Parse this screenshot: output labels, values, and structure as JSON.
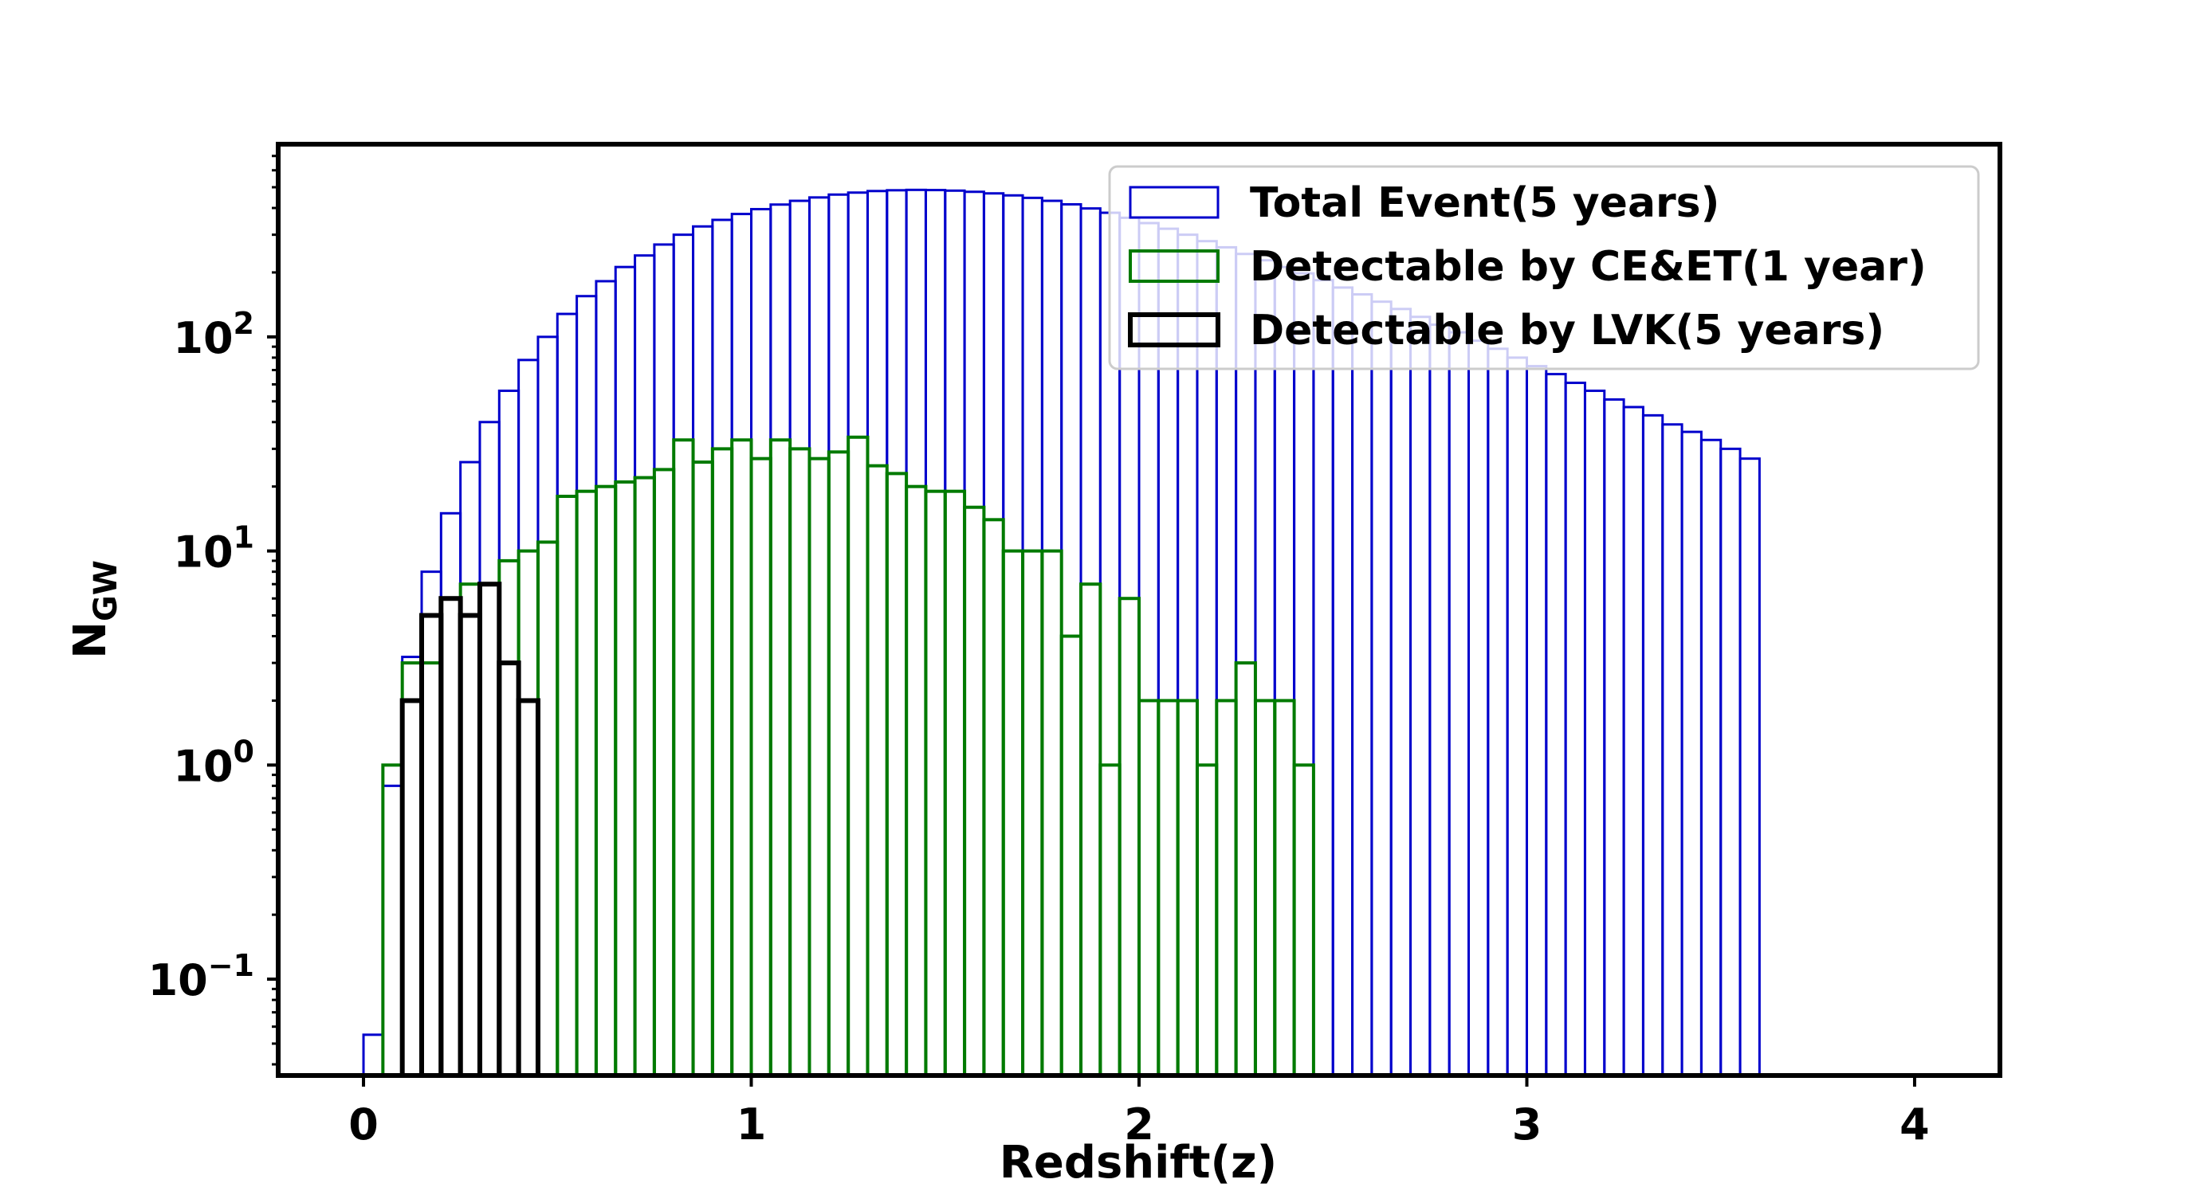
{
  "chart_data": {
    "type": "bar",
    "title": "",
    "xlabel": "Redshift(z)",
    "ylabel_main": "N",
    "ylabel_sub": "GW",
    "yscale": "log",
    "xlim": [
      -0.22,
      4.22
    ],
    "ylim_log10": [
      -1.45,
      2.9
    ],
    "bin_width": 0.05,
    "x_ticks": [
      {
        "value": 0,
        "label": "0"
      },
      {
        "value": 1,
        "label": "1"
      },
      {
        "value": 2,
        "label": "2"
      },
      {
        "value": 3,
        "label": "3"
      },
      {
        "value": 4,
        "label": "4"
      }
    ],
    "y_ticks": [
      {
        "exp": -1,
        "base": "10",
        "sup": "−1"
      },
      {
        "exp": 0,
        "base": "10",
        "sup": "0"
      },
      {
        "exp": 1,
        "base": "10",
        "sup": "1"
      },
      {
        "exp": 2,
        "base": "10",
        "sup": "2"
      }
    ],
    "legend_position": "upper-right",
    "series": [
      {
        "name": "Total Event(5 years)",
        "color": "#0000cc",
        "start": 0.0,
        "values": [
          0.055,
          0.8,
          3.2,
          8,
          15,
          26,
          40,
          56,
          78,
          100,
          128,
          155,
          182,
          212,
          240,
          270,
          300,
          328,
          352,
          375,
          395,
          415,
          432,
          448,
          462,
          472,
          480,
          484,
          486,
          485,
          482,
          476,
          468,
          458,
          446,
          432,
          416,
          398,
          380,
          360,
          340,
          320,
          300,
          280,
          262,
          244,
          228,
          212,
          198,
          184,
          170,
          158,
          146,
          135,
          124,
          114,
          105,
          96,
          88,
          80,
          73,
          67,
          61,
          56,
          51,
          47,
          43,
          39,
          36,
          33,
          30,
          27
        ]
      },
      {
        "name": "Detectable by CE&ET(1 year)",
        "color": "#007a00",
        "start": 0.05,
        "values": [
          1,
          3,
          3,
          6,
          7,
          7,
          9,
          10,
          11,
          18,
          19,
          20,
          21,
          22,
          24,
          33,
          26,
          30,
          33,
          27,
          33,
          30,
          27,
          29,
          34,
          25,
          23,
          20,
          19,
          19,
          16,
          14,
          10,
          10,
          10,
          4,
          7,
          1,
          6,
          2,
          2,
          2,
          1,
          2,
          3,
          2,
          2,
          1
        ]
      },
      {
        "name": "Detectable by LVK(5 years)",
        "color": "#000000",
        "start": 0.1,
        "values": [
          2,
          5,
          6,
          5,
          7,
          3,
          2
        ]
      }
    ]
  }
}
